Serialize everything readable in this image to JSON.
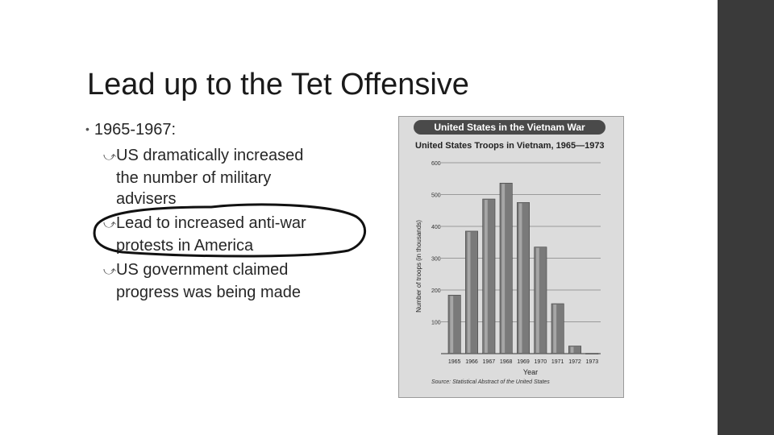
{
  "slide": {
    "title": "Lead up to the Tet Offensive",
    "bullet": "1965-1967:",
    "subbullets": [
      {
        "first": "US dramatically increased",
        "rest": [
          "the number of military",
          "advisers"
        ]
      },
      {
        "first": "Lead to increased anti-war",
        "rest": [
          "protests in America"
        ]
      },
      {
        "first": "US government claimed",
        "rest": [
          "progress was being made"
        ]
      }
    ],
    "bullet_icon": "bullet-dot",
    "subbullet_icon": "curved-arrow"
  },
  "figure": {
    "header": "United States in the Vietnam War",
    "source": "Source: Statistical Abstract of the United States"
  },
  "chart_data": {
    "type": "bar",
    "title": "United States Troops in Vietnam, 1965—1973",
    "xlabel": "Year",
    "ylabel": "Number of troops (in thousands)",
    "ylim": [
      0,
      600
    ],
    "yticks": [
      100,
      200,
      300,
      400,
      500,
      600
    ],
    "categories": [
      "1965",
      "1966",
      "1967",
      "1968",
      "1969",
      "1970",
      "1971",
      "1972",
      "1973"
    ],
    "values": [
      184,
      385,
      486,
      536,
      475,
      335,
      157,
      24,
      1
    ],
    "grid": true
  },
  "colors": {
    "accent_bar": "#3a3a3a",
    "bar": "#777777",
    "figure_bg": "#dcdcdc"
  }
}
